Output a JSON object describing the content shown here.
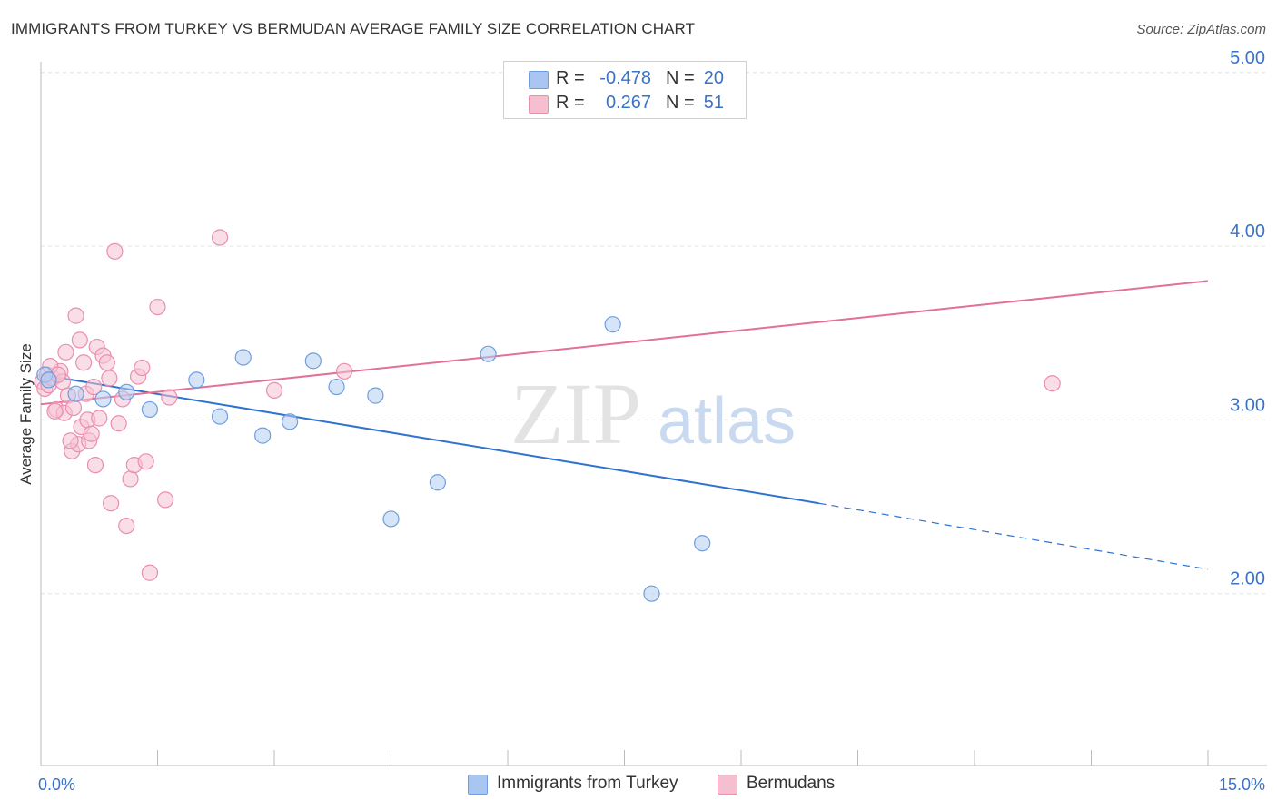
{
  "title": "IMMIGRANTS FROM TURKEY VS BERMUDAN AVERAGE FAMILY SIZE CORRELATION CHART",
  "source": "Source: ZipAtlas.com",
  "watermark": {
    "zip": "ZIP",
    "atlas": "atlas"
  },
  "legend": {
    "rows": [
      {
        "r_label": "R =",
        "r_value": "-0.478",
        "n_label": "N =",
        "n_value": "20",
        "color": "#a9c6f2",
        "border": "#6f9ee0"
      },
      {
        "r_label": "R =",
        "r_value": "0.267",
        "n_label": "N =",
        "n_value": "51",
        "color": "#f6bfd0",
        "border": "#e98fae"
      }
    ]
  },
  "bottom_legend": [
    {
      "label": "Immigrants from Turkey",
      "color": "#a9c6f2",
      "border": "#6f9ee0"
    },
    {
      "label": "Bermudans",
      "color": "#f6bfd0",
      "border": "#e98fae"
    }
  ],
  "chart_data": {
    "type": "scatter",
    "title": "IMMIGRANTS FROM TURKEY VS BERMUDAN AVERAGE FAMILY SIZE CORRELATION CHART",
    "xlabel": "",
    "ylabel": "Average Family Size",
    "xlim": [
      0,
      15
    ],
    "ylim": [
      1,
      5.1
    ],
    "x_tick_labels": [
      "0.0%",
      "15.0%"
    ],
    "y_ticks": [
      2.0,
      3.0,
      4.0,
      5.0
    ],
    "y_tick_labels": [
      "2.00",
      "3.00",
      "4.00",
      "5.00"
    ],
    "grid": true,
    "legend_position": "top-center",
    "series": [
      {
        "name": "Immigrants from Turkey",
        "color": "#6f9ee0",
        "fill": "#b4cdf2",
        "trend_color": "#2f72d0",
        "x": [
          0.05,
          0.1,
          0.45,
          0.8,
          1.1,
          1.4,
          2.0,
          2.3,
          2.6,
          2.85,
          3.2,
          3.5,
          3.8,
          4.3,
          4.5,
          5.1,
          5.75,
          7.35,
          7.85,
          8.5
        ],
        "y": [
          3.26,
          3.23,
          3.15,
          3.12,
          3.16,
          3.06,
          3.23,
          3.02,
          3.36,
          2.91,
          2.99,
          3.34,
          3.19,
          3.14,
          2.43,
          2.64,
          3.38,
          3.55,
          2.0,
          2.29
        ],
        "trend": {
          "x0": 0,
          "y0": 3.26,
          "x1": 10.0,
          "y1": 2.52,
          "dash_x1": 15.0,
          "dash_y1": 2.14
        }
      },
      {
        "name": "Bermudans",
        "color": "#e98fae",
        "fill": "#f6c3d3",
        "trend_color": "#e2709a",
        "x": [
          0.02,
          0.05,
          0.08,
          0.1,
          0.15,
          0.2,
          0.25,
          0.28,
          0.3,
          0.32,
          0.35,
          0.4,
          0.42,
          0.45,
          0.48,
          0.5,
          0.52,
          0.55,
          0.6,
          0.62,
          0.65,
          0.7,
          0.72,
          0.75,
          0.8,
          0.85,
          0.9,
          0.95,
          1.0,
          1.05,
          1.1,
          1.15,
          1.2,
          1.25,
          1.3,
          1.35,
          1.4,
          1.5,
          1.6,
          1.65,
          2.3,
          3.0,
          3.9,
          13.0,
          0.12,
          0.18,
          0.22,
          0.38,
          0.58,
          0.68,
          0.88
        ],
        "y": [
          3.22,
          3.18,
          3.26,
          3.2,
          3.24,
          3.06,
          3.28,
          3.22,
          3.04,
          3.39,
          3.14,
          2.82,
          3.07,
          3.6,
          2.86,
          3.46,
          2.96,
          3.33,
          3.0,
          2.88,
          2.92,
          2.74,
          3.42,
          3.01,
          3.37,
          3.33,
          2.52,
          3.97,
          2.98,
          3.12,
          2.39,
          2.66,
          2.74,
          3.25,
          3.3,
          2.76,
          2.12,
          3.65,
          2.54,
          3.13,
          4.05,
          3.17,
          3.28,
          3.21,
          3.31,
          3.05,
          3.26,
          2.88,
          3.15,
          3.19,
          3.24
        ],
        "trend": {
          "x0": 0,
          "y0": 3.09,
          "x1": 15.0,
          "y1": 3.8
        }
      }
    ]
  }
}
